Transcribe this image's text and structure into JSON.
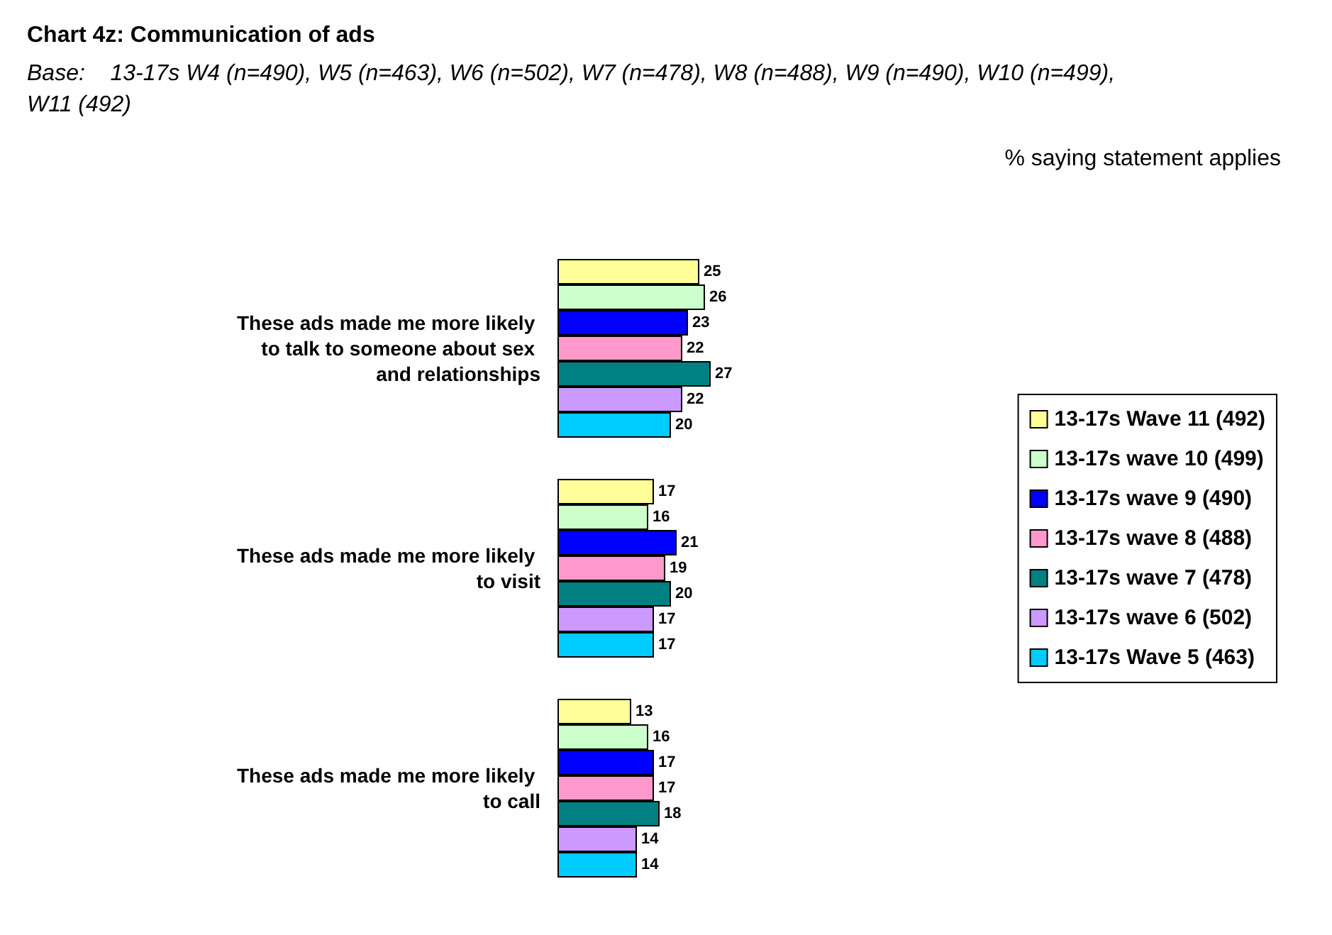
{
  "chart_data": {
    "type": "bar",
    "orientation": "horizontal",
    "title": "Chart 4z: Communication of ads",
    "subtitle": "Base:    13-17s W4 (n=490), W5 (n=463), W6 (n=502), W7 (n=478), W8 (n=488), W9 (n=490), W10 (n=499), W11 (492)",
    "annotations": [
      "% saying statement applies"
    ],
    "categories": [
      "These ads made me more likely to talk to someone about sex and relationships",
      "These ads made me more likely to visit",
      "These ads made me more likely to call"
    ],
    "series": [
      {
        "name": "13-17s Wave 11 (492)",
        "color": "#ffff99",
        "values": [
          25,
          17,
          13
        ]
      },
      {
        "name": "13-17s wave 10 (499)",
        "color": "#ccffcc",
        "values": [
          26,
          16,
          16
        ]
      },
      {
        "name": "13-17s wave 9 (490)",
        "color": "#0000ff",
        "values": [
          23,
          21,
          17
        ]
      },
      {
        "name": "13-17s wave 8 (488)",
        "color": "#ff99cc",
        "values": [
          22,
          19,
          17
        ]
      },
      {
        "name": "13-17s wave 7 (478)",
        "color": "#008080",
        "values": [
          27,
          20,
          18
        ]
      },
      {
        "name": "13-17s wave 6 (502)",
        "color": "#cc99ff",
        "values": [
          22,
          17,
          14
        ]
      },
      {
        "name": "13-17s Wave 5 (463)",
        "color": "#00ccff",
        "values": [
          20,
          17,
          14
        ]
      }
    ],
    "data_labels": true,
    "legend": "right"
  }
}
